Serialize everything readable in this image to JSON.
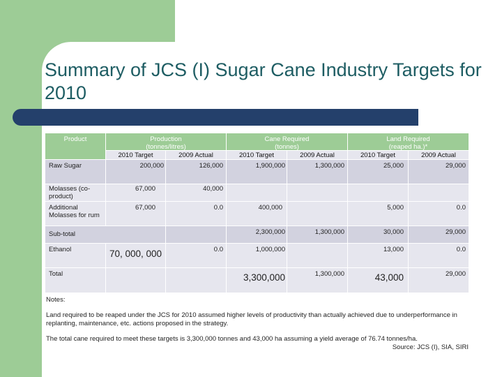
{
  "slide": {
    "title": "Summary of JCS (I) Sugar Cane Industry Targets for 2010"
  },
  "colors": {
    "green": "#9dcc96",
    "navy": "#24406b",
    "title": "#1e5d63",
    "row_light": "#e6e6ee",
    "row_dark": "#d2d2df"
  },
  "table": {
    "headers": {
      "product": "Product",
      "production": "Production (tonnes/litres)",
      "cane": "Cane Required (tonnes)",
      "land": "Land Required (reaped ha.)*",
      "target": "2010 Target",
      "actual": "2009 Actual"
    },
    "rows": {
      "raw_sugar": {
        "label": "Raw Sugar",
        "prod_target": "200,000",
        "prod_actual": "126,000",
        "cane_target": "1,900,000",
        "cane_actual": "1,300,000",
        "land_target": "25,000",
        "land_actual": "29,000"
      },
      "molasses": {
        "label": "Molasses (co-product)",
        "prod_target": "67,000",
        "prod_actual": "40,000"
      },
      "additional": {
        "label": "Additional Molasses for rum",
        "prod_target": "67,000",
        "prod_actual": "0.0",
        "cane_target": "400,000",
        "land_target": "5,000",
        "land_actual": "0.0"
      },
      "subtotal": {
        "label": "Sub-total",
        "cane_target": "2,300,000",
        "cane_actual": "1,300,000",
        "land_target": "30,000",
        "land_actual": "29,000"
      },
      "ethanol": {
        "label": "Ethanol",
        "prod_target": "70, 000, 000",
        "prod_actual": "0.0",
        "cane_target": "1,000,000",
        "land_target": "13,000",
        "land_actual": "0.0"
      },
      "total": {
        "label": "Total",
        "cane_target": "3,300,000",
        "cane_actual": "1,300,000",
        "land_target": "43,000",
        "land_actual": "29,000"
      }
    }
  },
  "notes": {
    "heading": "Notes:",
    "line1": "Land required to be reaped under the JCS for 2010 assumed higher levels of productivity than actually achieved due to underperformance in replanting, maintenance, etc. actions proposed in the strategy.",
    "line2": "The total cane required to meet these targets is 3,300,000 tonnes and 43,000 ha assuming a yield average of 76.74 tonnes/ha.",
    "source": "Source: JCS (I), SIA, SIRI"
  }
}
